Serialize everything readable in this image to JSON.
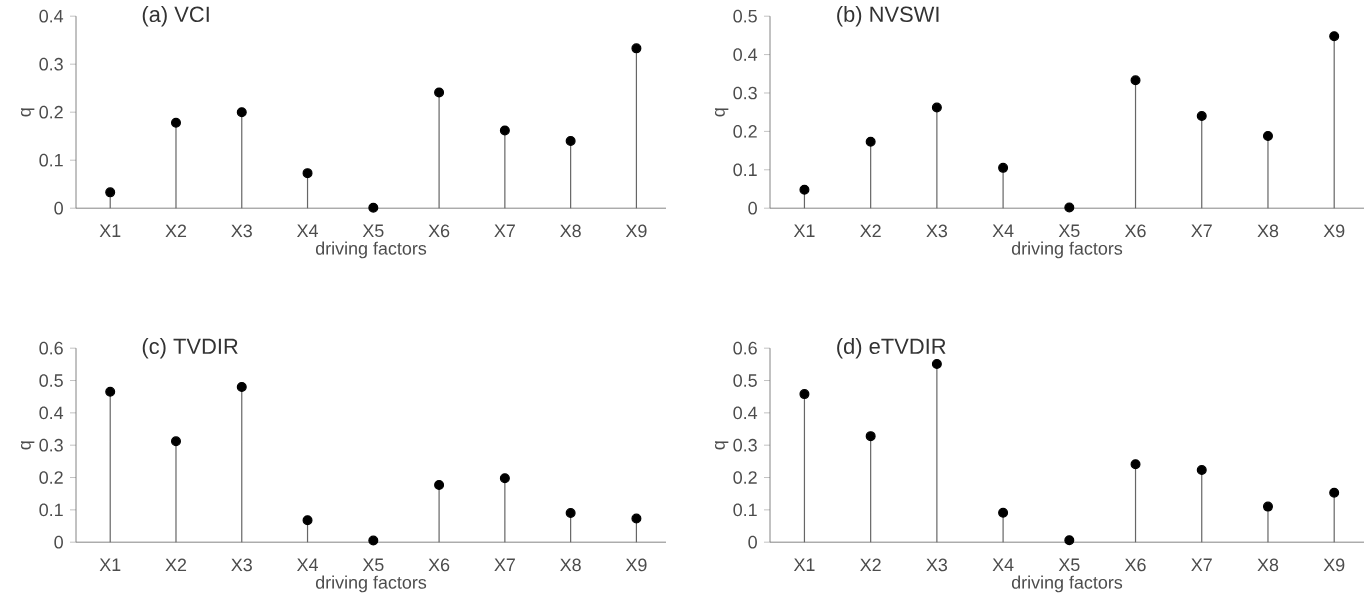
{
  "chart_data": [
    {
      "type": "lollipop",
      "title": "(a) VCI",
      "xlabel": "driving factors",
      "ylabel": "q",
      "categories": [
        "X1",
        "X2",
        "X3",
        "X4",
        "X5",
        "X6",
        "X7",
        "X8",
        "X9"
      ],
      "values": [
        0.033,
        0.178,
        0.2,
        0.073,
        0.001,
        0.241,
        0.162,
        0.14,
        0.333
      ],
      "color": "#000000",
      "marker": "circle",
      "ylim": [
        0,
        0.4
      ],
      "yticks": [
        0,
        0.1,
        0.2,
        0.3,
        0.4
      ]
    },
    {
      "type": "lollipop",
      "title": "(b) NVSWI",
      "xlabel": "driving factors",
      "ylabel": "q",
      "categories": [
        "X1",
        "X2",
        "X3",
        "X4",
        "X5",
        "X6",
        "X7",
        "X8",
        "X9"
      ],
      "values": [
        0.048,
        0.173,
        0.262,
        0.105,
        0.002,
        0.333,
        0.24,
        0.188,
        0.448
      ],
      "color": "#000000",
      "marker": "circle",
      "ylim": [
        0,
        0.5
      ],
      "yticks": [
        0,
        0.1,
        0.2,
        0.3,
        0.4,
        0.5
      ]
    },
    {
      "type": "lollipop",
      "title": "(c) TVDIR",
      "xlabel": "driving factors",
      "ylabel": "q",
      "categories": [
        "X1",
        "X2",
        "X3",
        "X4",
        "X5",
        "X6",
        "X7",
        "X8",
        "X9"
      ],
      "values": [
        0.465,
        0.312,
        0.48,
        0.068,
        0.005,
        0.177,
        0.198,
        0.09,
        0.073
      ],
      "color": "#000000",
      "marker": "circle",
      "ylim": [
        0,
        0.6
      ],
      "yticks": [
        0,
        0.1,
        0.2,
        0.3,
        0.4,
        0.5,
        0.6
      ]
    },
    {
      "type": "lollipop",
      "title": "(d) eTVDIR",
      "xlabel": "driving factors",
      "ylabel": "q",
      "categories": [
        "X1",
        "X2",
        "X3",
        "X4",
        "X5",
        "X6",
        "X7",
        "X8",
        "X9"
      ],
      "values": [
        0.458,
        0.328,
        0.551,
        0.091,
        0.006,
        0.241,
        0.223,
        0.11,
        0.153
      ],
      "color": "#000000",
      "marker": "circle",
      "ylim": [
        0,
        0.6
      ],
      "yticks": [
        0,
        0.1,
        0.2,
        0.3,
        0.4,
        0.5,
        0.6
      ]
    }
  ]
}
